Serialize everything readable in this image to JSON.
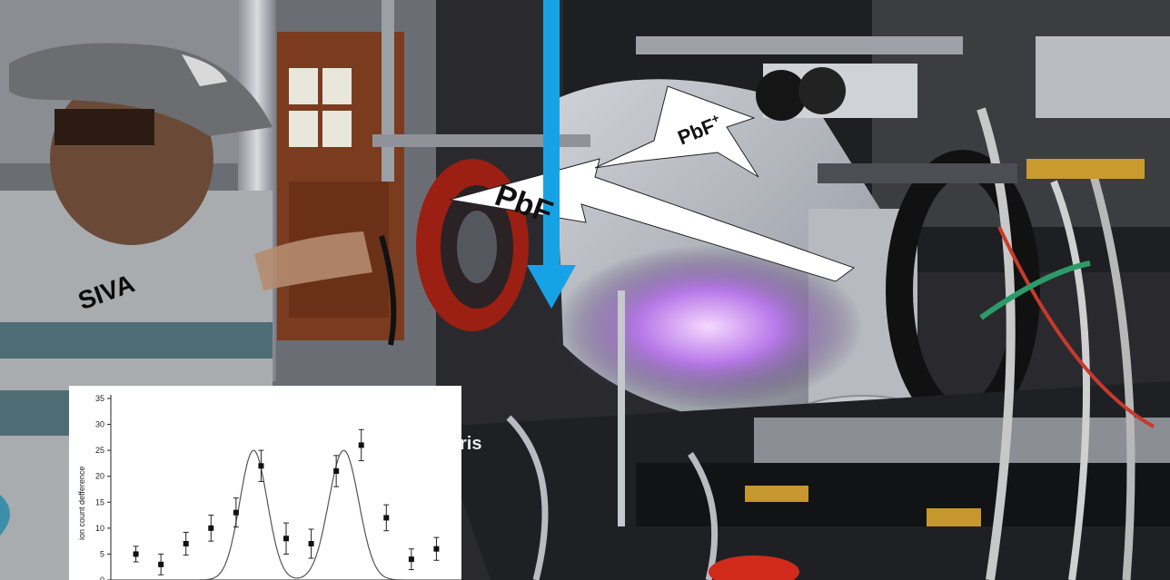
{
  "labels": {
    "person": "SIVA",
    "molecule": "PbF",
    "ion_base": "PbF",
    "ion_charge": "+",
    "partial_text": "ris"
  },
  "chart_data": {
    "type": "scatter",
    "title": "",
    "xlabel": "",
    "ylabel": "ion count defference",
    "ylim": [
      0,
      35
    ],
    "yticks": [
      0,
      5,
      10,
      15,
      20,
      25,
      30,
      35
    ],
    "series": [
      {
        "kind": "points-with-error",
        "x": [
          1,
          2,
          3,
          4,
          5,
          6,
          7,
          8,
          9,
          10,
          11,
          12,
          13
        ],
        "y": [
          5,
          3,
          7,
          10,
          13,
          22,
          8,
          7,
          21,
          26,
          12,
          4,
          6
        ],
        "err": [
          1.5,
          2,
          2.2,
          2.5,
          2.8,
          3,
          3,
          2.8,
          3,
          3,
          2.5,
          2,
          2.2
        ]
      },
      {
        "kind": "fit-curve",
        "peaks": [
          {
            "center": 5.7,
            "height": 25,
            "width": 0.55
          },
          {
            "center": 9.3,
            "height": 25,
            "width": 0.6
          }
        ]
      }
    ],
    "grid": false,
    "legend": "none"
  }
}
